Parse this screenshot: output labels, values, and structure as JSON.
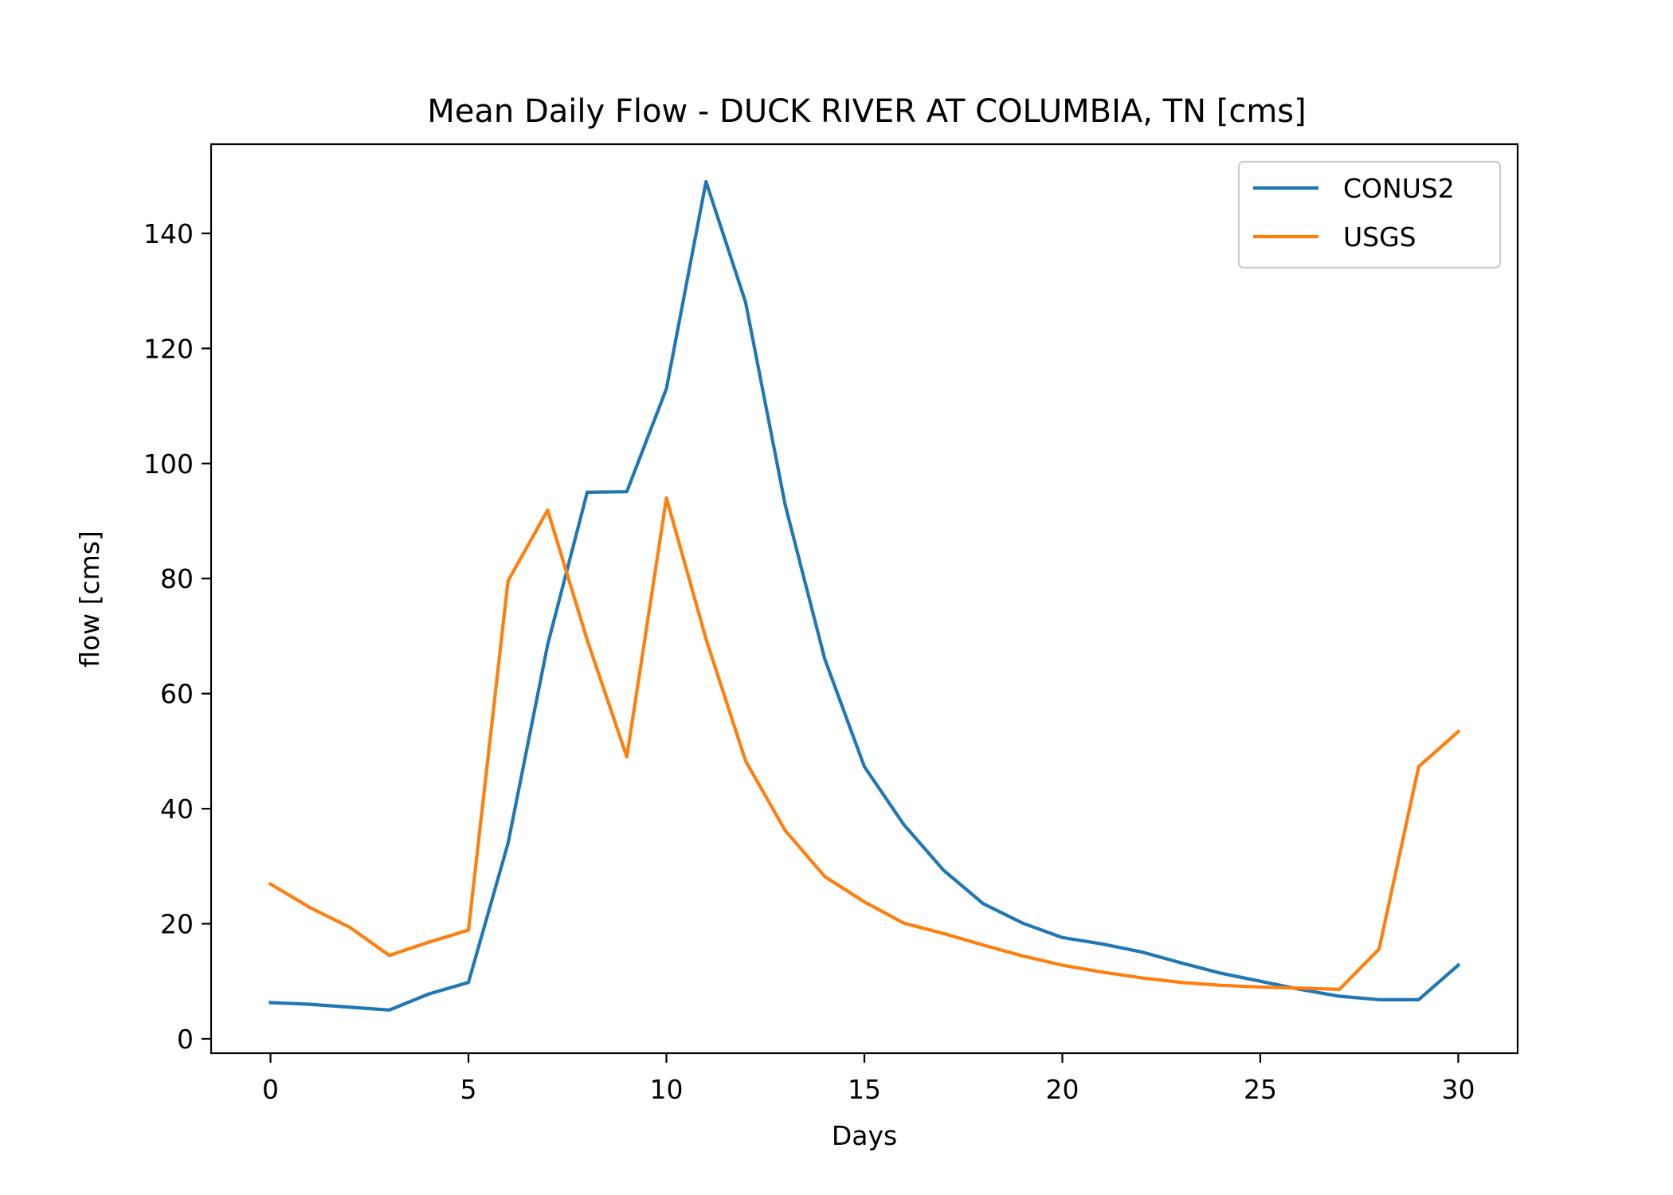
{
  "chart_data": {
    "type": "line",
    "title": "Mean Daily Flow - DUCK RIVER AT COLUMBIA, TN [cms]",
    "xlabel": "Days",
    "ylabel": "flow [cms]",
    "xlim": [
      -1.5,
      31.5
    ],
    "ylim": [
      -2.5,
      155.5
    ],
    "xticks": [
      0,
      5,
      10,
      15,
      20,
      25,
      30
    ],
    "yticks": [
      0,
      20,
      40,
      60,
      80,
      100,
      120,
      140
    ],
    "grid": false,
    "legend_position": "top-right",
    "x": [
      0,
      1,
      2,
      3,
      4,
      5,
      6,
      7,
      8,
      9,
      10,
      11,
      12,
      13,
      14,
      15,
      16,
      17,
      18,
      19,
      20,
      21,
      22,
      23,
      24,
      25,
      26,
      27,
      28,
      29,
      30
    ],
    "series": [
      {
        "name": "CONUS2",
        "color": "#1f77b4",
        "values": [
          6.3,
          6.0,
          5.5,
          5.0,
          7.8,
          9.8,
          34.0,
          68.5,
          95.0,
          95.1,
          113.0,
          149.0,
          128.0,
          92.8,
          66.0,
          47.3,
          37.2,
          29.3,
          23.5,
          20.1,
          17.6,
          16.5,
          15.1,
          13.2,
          11.4,
          10.0,
          8.6,
          7.4,
          6.8,
          6.8,
          12.8
        ]
      },
      {
        "name": "USGS",
        "color": "#ff7f0e",
        "values": [
          26.9,
          22.8,
          19.4,
          14.5,
          16.8,
          18.9,
          79.6,
          91.9,
          69.3,
          49.0,
          94.0,
          69.5,
          48.3,
          36.2,
          28.2,
          23.8,
          20.1,
          18.3,
          16.3,
          14.4,
          12.8,
          11.6,
          10.6,
          9.8,
          9.3,
          9.0,
          8.8,
          8.6,
          15.6,
          47.3,
          53.4
        ]
      }
    ]
  }
}
